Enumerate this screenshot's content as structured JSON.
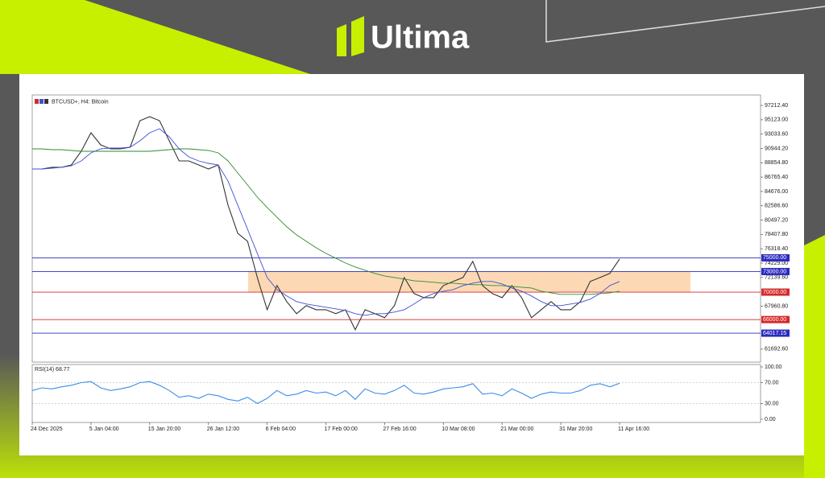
{
  "brand": "Ultima",
  "chart_data": [
    {
      "type": "line",
      "title": "BTCUSD+, H4: Bitcoin",
      "categories": [
        "24 Dec 2025",
        null,
        null,
        null,
        null,
        null,
        "5 Jan 04:00",
        null,
        null,
        null,
        null,
        null,
        "15 Jan 20:00",
        null,
        null,
        null,
        null,
        null,
        "26 Jan 12:00",
        null,
        null,
        null,
        null,
        null,
        "6 Feb 04:00",
        null,
        null,
        null,
        null,
        null,
        "17 Feb 00:00",
        null,
        null,
        null,
        null,
        null,
        "27 Feb 16:00",
        null,
        null,
        null,
        null,
        null,
        "10 Mar 08:00",
        null,
        null,
        null,
        null,
        null,
        "21 Mar 00:00",
        null,
        null,
        null,
        null,
        null,
        "31 Mar 20:00",
        null,
        null,
        null,
        null,
        null,
        "11 Apr 16:00"
      ],
      "series": [
        {
          "color": "#333333",
          "values": [
            87950,
            87950,
            88190,
            88190,
            88540,
            90530,
            93230,
            91470,
            90880,
            90880,
            91120,
            94990,
            95570,
            94990,
            92060,
            89120,
            89120,
            88540,
            87950,
            88540,
            82680,
            78580,
            77400,
            72130,
            67440,
            70960,
            68620,
            66860,
            68030,
            67440,
            67440,
            66860,
            67440,
            64510,
            67440,
            66860,
            66270,
            68030,
            72130,
            69790,
            69200,
            69200,
            70960,
            71550,
            72130,
            74480,
            70960,
            69790,
            69200,
            70960,
            69200,
            66270,
            67440,
            68620,
            67440,
            67440,
            68620,
            71550,
            72130,
            72720,
            74830
          ]
        },
        {
          "color": "#2e8b2e",
          "values": [
            90880,
            90880,
            90770,
            90770,
            90650,
            90530,
            90530,
            90530,
            90530,
            90530,
            90530,
            90530,
            90530,
            90650,
            90770,
            90880,
            90880,
            90770,
            90650,
            90300,
            89120,
            87370,
            85610,
            83850,
            82330,
            80920,
            79520,
            78340,
            77400,
            76470,
            75650,
            74950,
            74240,
            73660,
            73190,
            72720,
            72360,
            72130,
            71900,
            71660,
            71550,
            71430,
            71310,
            71310,
            71190,
            71080,
            71080,
            70960,
            70960,
            70840,
            70720,
            70600,
            70130,
            69900,
            69670,
            69670,
            69670,
            69670,
            69790,
            69900,
            70130
          ]
        },
        {
          "color": "#3f4fd8",
          "values": [
            87950,
            87950,
            88070,
            88190,
            88420,
            89120,
            90300,
            90880,
            91000,
            91000,
            91120,
            92060,
            93230,
            93810,
            92640,
            90880,
            89710,
            89120,
            88770,
            88540,
            86200,
            82680,
            79160,
            75650,
            72130,
            70370,
            69440,
            68620,
            68270,
            68030,
            67800,
            67560,
            67330,
            66860,
            66620,
            66860,
            66860,
            67090,
            67440,
            68270,
            69200,
            69790,
            70130,
            70370,
            70960,
            71310,
            71550,
            71550,
            71190,
            70600,
            70130,
            69440,
            68620,
            68030,
            68030,
            68270,
            68500,
            68970,
            69790,
            70960,
            71550
          ]
        }
      ],
      "ylim": [
        59800,
        98740
      ],
      "yticks": [
        {
          "value": 97212.4,
          "label": "97212.40"
        },
        {
          "value": 95123,
          "label": "95123.00"
        },
        {
          "value": 93033.6,
          "label": "93033.60"
        },
        {
          "value": 90944.2,
          "label": "90944.20"
        },
        {
          "value": 88854.8,
          "label": "88854.80"
        },
        {
          "value": 86765.4,
          "label": "86765.40"
        },
        {
          "value": 84676,
          "label": "84676.00"
        },
        {
          "value": 82586.6,
          "label": "82586.60"
        },
        {
          "value": 80497.2,
          "label": "80497.20"
        },
        {
          "value": 78407.8,
          "label": "78407.80"
        },
        {
          "value": 76318.4,
          "label": "76318.40"
        },
        {
          "value": 74229,
          "label": "74229.00"
        },
        {
          "value": 72139.6,
          "label": "72139.60"
        },
        {
          "value": 67960.8,
          "label": "67960.80"
        },
        {
          "value": 61692.6,
          "label": "61692.60"
        }
      ],
      "zone": {
        "from": 70000,
        "to": 73000,
        "color": "#fcd9b4"
      },
      "levels": [
        {
          "value": 75000,
          "label": "75000.00",
          "color": "#2b2bbf"
        },
        {
          "value": 73000,
          "label": "73000.00",
          "color": "#2b2bbf"
        },
        {
          "value": 70000,
          "label": "70000.00",
          "color": "#d42a2a"
        },
        {
          "value": 66000,
          "label": "66000.00",
          "color": "#d42a2a"
        },
        {
          "value": 64017.15,
          "label": "64017.15",
          "color": "#2b2bbf"
        }
      ]
    },
    {
      "type": "line",
      "title": "RSI(14) 68.77",
      "series": [
        {
          "color": "#3a8ee6",
          "values": [
            55,
            60,
            58,
            62,
            65,
            70,
            72,
            60,
            55,
            58,
            62,
            70,
            72,
            65,
            55,
            42,
            45,
            40,
            48,
            45,
            38,
            35,
            42,
            30,
            40,
            55,
            45,
            48,
            55,
            50,
            52,
            45,
            55,
            38,
            58,
            50,
            48,
            55,
            65,
            50,
            48,
            52,
            58,
            60,
            62,
            68,
            48,
            50,
            45,
            58,
            50,
            40,
            48,
            52,
            50,
            50,
            55,
            65,
            68,
            62,
            68.77
          ]
        }
      ],
      "ylim": [
        0,
        100
      ],
      "yticks": [
        {
          "value": 100,
          "label": "100.00"
        },
        {
          "value": 70,
          "label": "70.00"
        },
        {
          "value": 30,
          "label": "30.00"
        },
        {
          "value": 0,
          "label": "0.00"
        }
      ],
      "grid": [
        70,
        30
      ]
    }
  ]
}
